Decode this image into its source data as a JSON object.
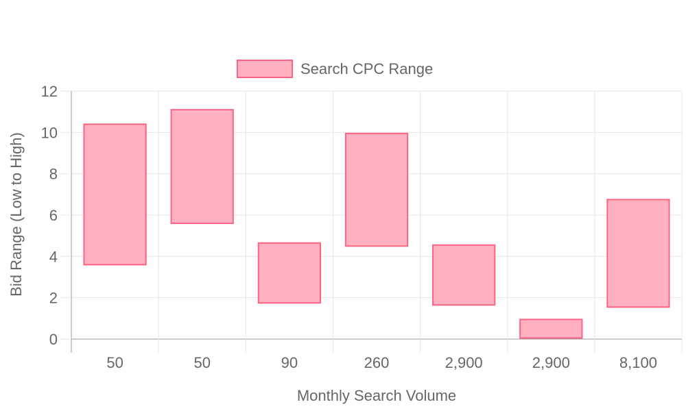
{
  "chart_data": {
    "type": "bar",
    "variant": "floating-range",
    "categories": [
      "50",
      "50",
      "90",
      "260",
      "2,900",
      "2,900",
      "8,100"
    ],
    "series": [
      {
        "name": "Search CPC Range",
        "ranges": [
          [
            3.6,
            10.4
          ],
          [
            5.6,
            11.1
          ],
          [
            1.75,
            4.65
          ],
          [
            4.5,
            9.95
          ],
          [
            1.65,
            4.55
          ],
          [
            0.05,
            0.95
          ],
          [
            1.55,
            6.75
          ]
        ]
      }
    ],
    "xlabel": "Monthly Search Volume",
    "ylabel": "Bid Range (Low to High)",
    "ylim": [
      0,
      12
    ],
    "yticks": [
      0,
      2,
      4,
      6,
      8,
      10,
      12
    ],
    "grid": true,
    "legend_position": "top",
    "colors": {
      "fill": "#ffb1c1",
      "stroke": "#ff6384",
      "grid": "#e5e5e5",
      "axis": "#999999",
      "text": "#666666"
    }
  }
}
